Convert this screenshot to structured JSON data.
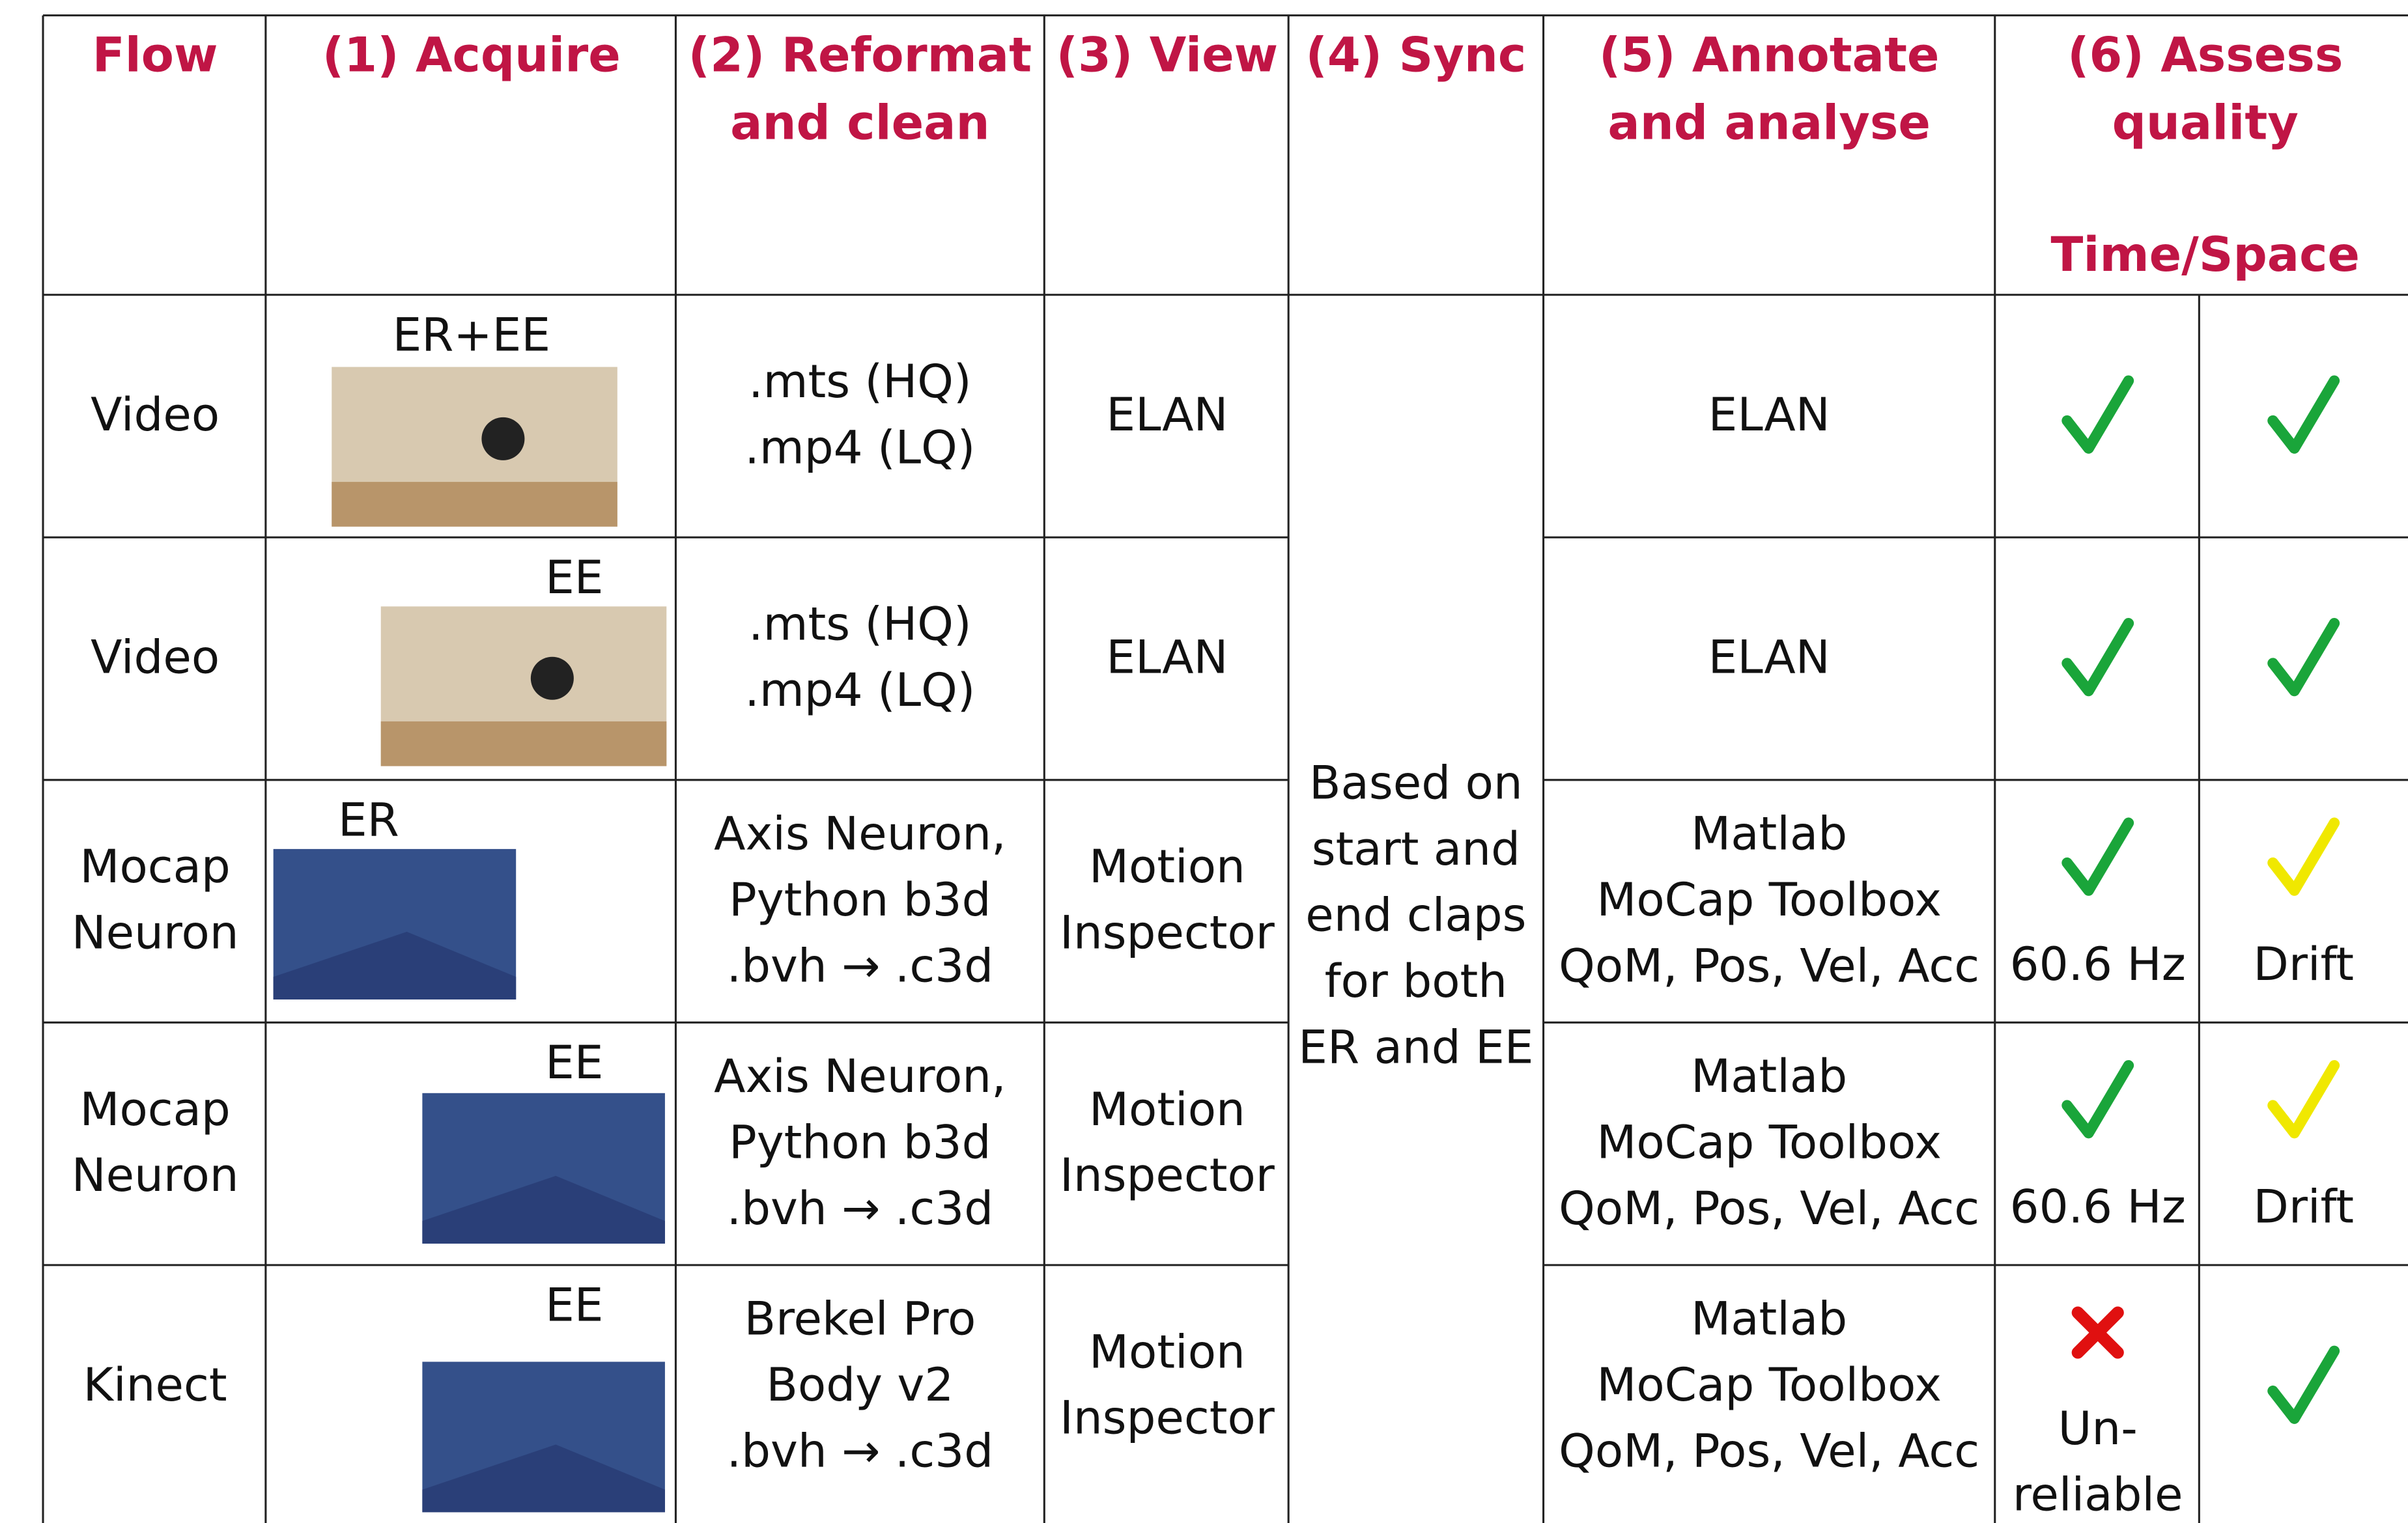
{
  "header": {
    "columns": [
      [
        "Flow"
      ],
      [
        "(1) Acquire"
      ],
      [
        "(2) Reformat",
        "and clean"
      ],
      [
        "(3) View"
      ],
      [
        "(4) Sync"
      ],
      [
        "(5) Annotate",
        "and analyse"
      ],
      [
        "(6) Assess",
        "quality"
      ]
    ],
    "subheader": "Time/Space"
  },
  "sync": [
    "Based on",
    "start and",
    "end claps",
    "for both",
    "ER and EE"
  ],
  "rows": [
    {
      "flow": [
        "Video"
      ],
      "acquire": "ER+EE",
      "reformat": [
        ".mts (HQ)",
        ".mp4 (LQ)"
      ],
      "view": [
        "ELAN"
      ],
      "annotate": [
        "ELAN"
      ],
      "time": [],
      "space": []
    },
    {
      "flow": [
        "Video"
      ],
      "acquire": "EE",
      "reformat": [
        ".mts (HQ)",
        ".mp4 (LQ)"
      ],
      "view": [
        "ELAN"
      ],
      "annotate": [
        "ELAN"
      ],
      "time": [],
      "space": []
    },
    {
      "flow": [
        "Mocap",
        "Neuron"
      ],
      "acquire": "ER",
      "reformat": [
        "Axis Neuron,",
        "Python b3d",
        ".bvh → .c3d"
      ],
      "view": [
        "Motion",
        "Inspector"
      ],
      "annotate": [
        "Matlab",
        "MoCap Toolbox",
        "QoM, Pos, Vel, Acc"
      ],
      "time": [
        "60.6 Hz"
      ],
      "space": [
        "Drift"
      ]
    },
    {
      "flow": [
        "Mocap",
        "Neuron"
      ],
      "acquire": "EE",
      "reformat": [
        "Axis Neuron,",
        "Python b3d",
        ".bvh → .c3d"
      ],
      "view": [
        "Motion",
        "Inspector"
      ],
      "annotate": [
        "Matlab",
        "MoCap Toolbox",
        "QoM, Pos, Vel, Acc"
      ],
      "time": [
        "60.6 Hz"
      ],
      "space": [
        "Drift"
      ]
    },
    {
      "flow": [
        "Kinect"
      ],
      "acquire": "EE",
      "reformat": [
        "Brekel Pro",
        "Body v2",
        ".bvh → .c3d"
      ],
      "view": [
        "Motion",
        "Inspector"
      ],
      "annotate": [
        "Matlab",
        "MoCap Toolbox",
        "QoM, Pos, Vel, Acc"
      ],
      "time": [
        "Un-",
        "reliable"
      ],
      "space": []
    }
  ]
}
